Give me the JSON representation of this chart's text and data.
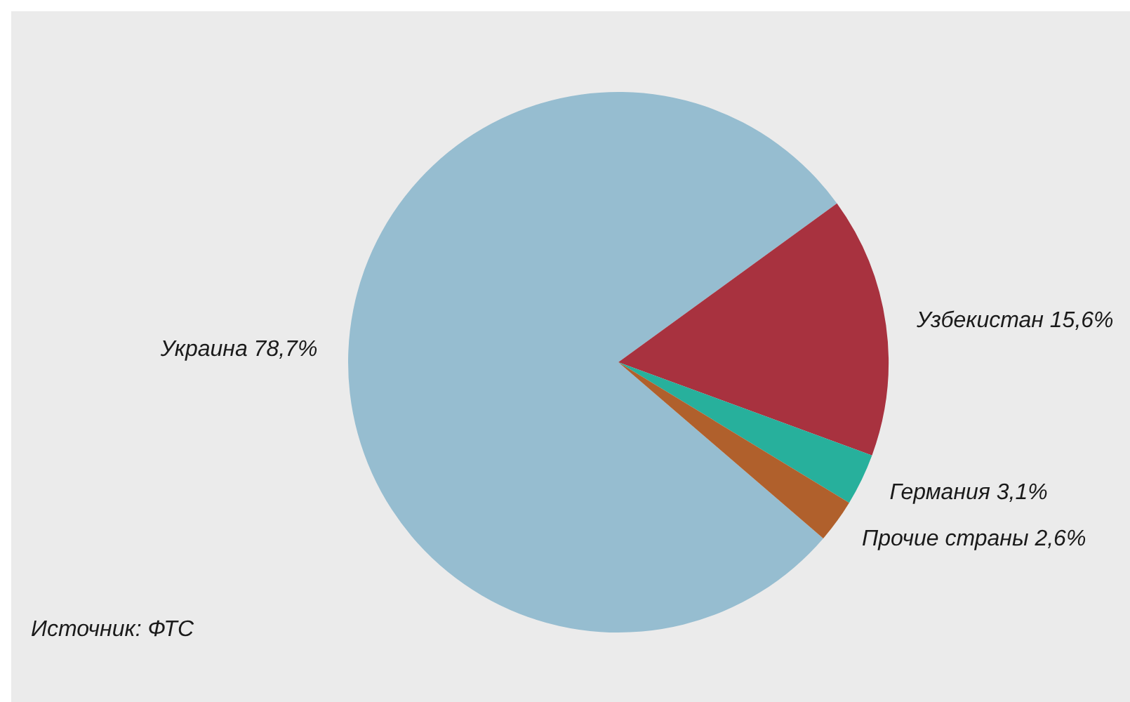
{
  "chart_data": {
    "type": "pie",
    "categories": [
      "Украина",
      "Узбекистан",
      "Германия",
      "Прочие страны"
    ],
    "values": [
      78.7,
      15.6,
      3.1,
      2.6
    ],
    "value_labels": [
      "78,7%",
      "15,6%",
      "3,1%",
      "2,6%"
    ],
    "colors": [
      "#96bdd0",
      "#a8323f",
      "#27b09c",
      "#b0602c"
    ],
    "legend": false,
    "annotations": [
      "Источник: ФТС"
    ]
  }
}
